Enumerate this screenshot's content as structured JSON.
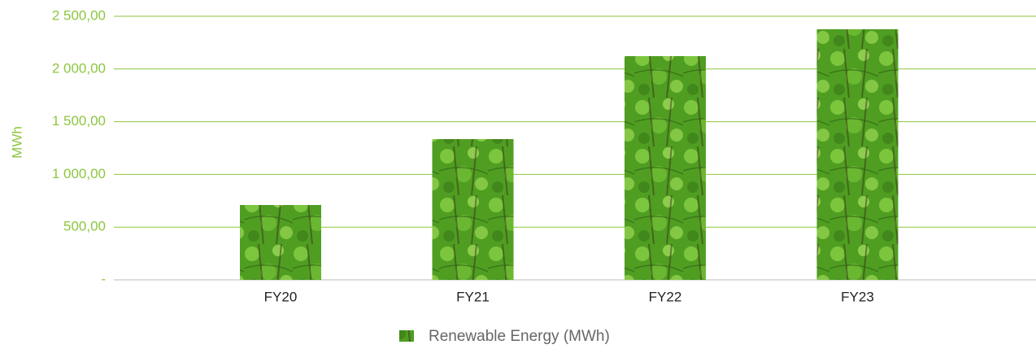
{
  "chart_data": {
    "type": "bar",
    "y_label": "MWh",
    "categories": [
      "FY20",
      "FY21",
      "FY22",
      "FY23"
    ],
    "series": [
      {
        "name": "Renewable Energy (MWh)",
        "color": "#4f9e22",
        "values": [
          710,
          1335,
          2122,
          2377
        ]
      }
    ],
    "ylim": [
      0,
      2500
    ],
    "yticks": [
      {
        "value": 0,
        "label": "-"
      },
      {
        "value": 500,
        "label": "500,00"
      },
      {
        "value": 1000,
        "label": "1 000,00"
      },
      {
        "value": 1500,
        "label": "1 500,00"
      },
      {
        "value": 2000,
        "label": "2 000,00"
      },
      {
        "value": 2500,
        "label": "2 500,00"
      }
    ],
    "grid": true,
    "legend": "bottom"
  }
}
